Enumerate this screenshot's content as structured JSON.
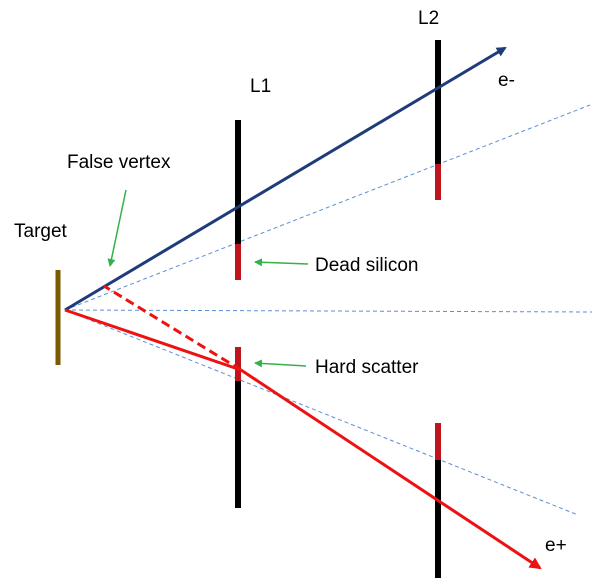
{
  "labels": {
    "l1": "L1",
    "l2": "L2",
    "target": "Target",
    "false_vertex": "False vertex",
    "dead_silicon": "Dead silicon",
    "hard_scatter": "Hard scatter",
    "electron": "e-",
    "positron": "e+"
  },
  "colors": {
    "electron_track": "#1f3b7a",
    "positron_track": "#ee1111",
    "layer_active": "#000000",
    "layer_dead": "#c0141c",
    "target": "#7a5a00",
    "annotation_arrow": "#33b24a",
    "guide_line": "#5b8fd6"
  }
}
